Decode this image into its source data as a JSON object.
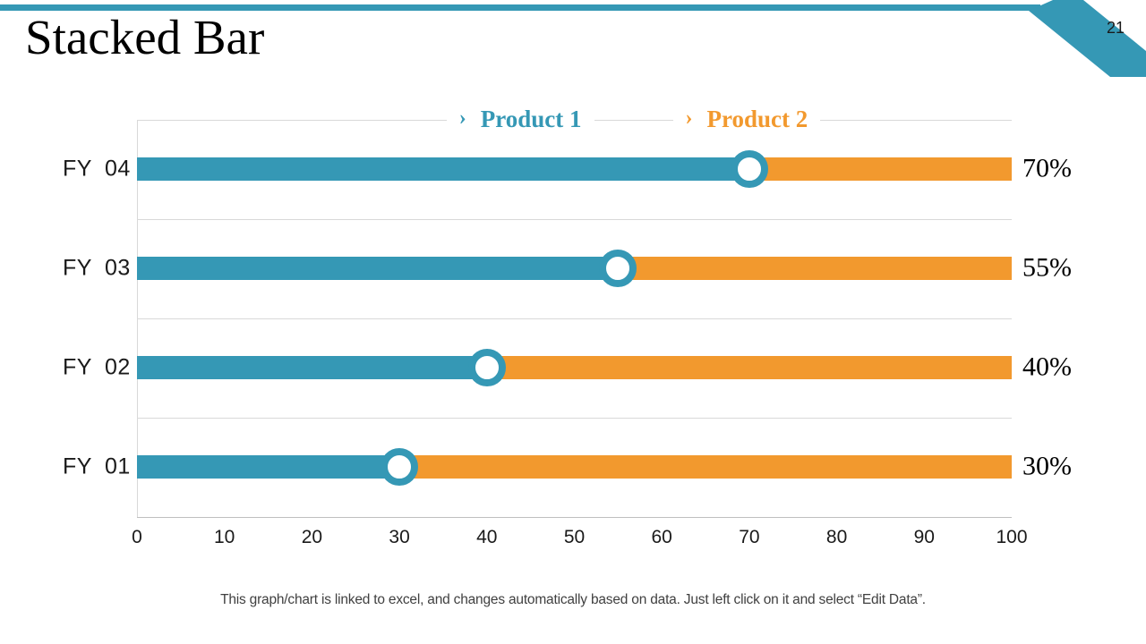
{
  "slide": {
    "title": "Stacked Bar",
    "page_number": "21",
    "footer": "This graph/chart is linked to excel, and changes automatically  based on data. Just left click on it and select “Edit Data”."
  },
  "colors": {
    "accent_teal": "#3598b5",
    "accent_orange": "#f2992e",
    "gridline": "#d9d9d9",
    "axis_line": "#bfbfbf"
  },
  "chart_data": {
    "type": "bar",
    "orientation": "horizontal",
    "stacked": true,
    "title": "",
    "xlabel": "",
    "ylabel": "",
    "categories": [
      "FY 04",
      "FY 03",
      "FY 02",
      "FY 01"
    ],
    "series": [
      {
        "name": "Product 1",
        "color": "#3598b5",
        "values": [
          70,
          55,
          40,
          30
        ]
      },
      {
        "name": "Product 2",
        "color": "#f2992e",
        "values": [
          30,
          45,
          60,
          70
        ]
      }
    ],
    "bar_end_labels": [
      "70%",
      "55%",
      "40%",
      "30%"
    ],
    "xlim": [
      0,
      100
    ],
    "x_ticks": [
      0,
      10,
      20,
      30,
      40,
      50,
      60,
      70,
      80,
      90,
      100
    ],
    "grid": true,
    "legend_position": "top",
    "legend_marker": "›",
    "junction_marker": "white circle with teal ring"
  }
}
